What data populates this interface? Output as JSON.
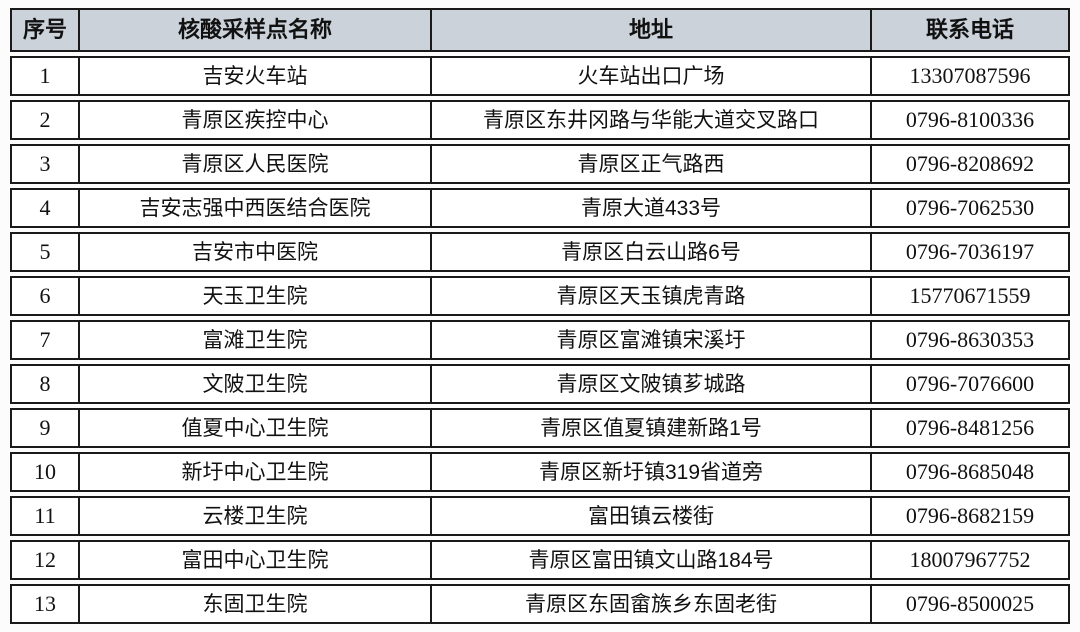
{
  "table": {
    "title_semantic": "核酸采样点信息表",
    "colors": {
      "header_bg": "#cbd2da",
      "border": "#1a1a1a",
      "text": "#111111"
    },
    "headers": {
      "num": "序号",
      "name": "核酸采样点名称",
      "address": "地址",
      "phone": "联系电话"
    },
    "rows": [
      {
        "num": "1",
        "name": "吉安火车站",
        "address": "火车站出口广场",
        "phone": "13307087596"
      },
      {
        "num": "2",
        "name": "青原区疾控中心",
        "address": "青原区东井冈路与华能大道交叉路口",
        "phone": "0796-8100336"
      },
      {
        "num": "3",
        "name": "青原区人民医院",
        "address": "青原区正气路西",
        "phone": "0796-8208692"
      },
      {
        "num": "4",
        "name": "吉安志强中西医结合医院",
        "address": "青原大道433号",
        "phone": "0796-7062530"
      },
      {
        "num": "5",
        "name": "吉安市中医院",
        "address": "青原区白云山路6号",
        "phone": "0796-7036197"
      },
      {
        "num": "6",
        "name": "天玉卫生院",
        "address": "青原区天玉镇虎青路",
        "phone": "15770671559"
      },
      {
        "num": "7",
        "name": "富滩卫生院",
        "address": "青原区富滩镇宋溪圩",
        "phone": "0796-8630353"
      },
      {
        "num": "8",
        "name": "文陂卫生院",
        "address": "青原区文陂镇芗城路",
        "phone": "0796-7076600"
      },
      {
        "num": "9",
        "name": "值夏中心卫生院",
        "address": "青原区值夏镇建新路1号",
        "phone": "0796-8481256"
      },
      {
        "num": "10",
        "name": "新圩中心卫生院",
        "address": "青原区新圩镇319省道旁",
        "phone": "0796-8685048"
      },
      {
        "num": "11",
        "name": "云楼卫生院",
        "address": "富田镇云楼街",
        "phone": "0796-8682159"
      },
      {
        "num": "12",
        "name": "富田中心卫生院",
        "address": "青原区富田镇文山路184号",
        "phone": "18007967752"
      },
      {
        "num": "13",
        "name": "东固卫生院",
        "address": "青原区东固畲族乡东固老街",
        "phone": "0796-8500025"
      }
    ]
  }
}
